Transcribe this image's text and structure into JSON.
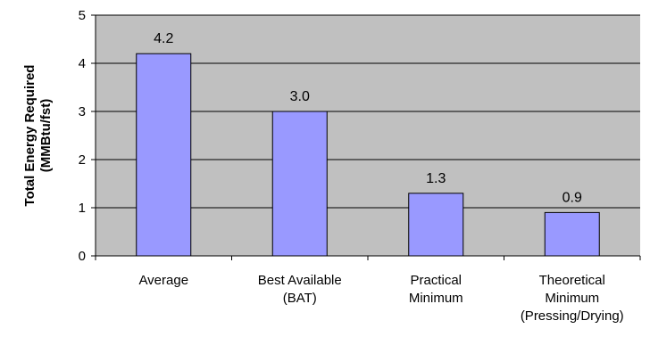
{
  "chart_data": {
    "type": "bar",
    "title": "",
    "xlabel": "",
    "ylabel_lines": [
      "Total Energy Required",
      "(MMBtu/fst)"
    ],
    "ylim": [
      0,
      5
    ],
    "yticks": [
      "0",
      "1",
      "2",
      "3",
      "4",
      "5"
    ],
    "categories": [
      [
        "Average"
      ],
      [
        "Best Available",
        "(BAT)"
      ],
      [
        "Practical",
        "Minimum"
      ],
      [
        "Theoretical",
        "Minimum",
        "(Pressing/Drying)"
      ]
    ],
    "values": [
      4.2,
      3.0,
      1.3,
      0.9
    ],
    "data_labels": [
      "4.2",
      "3.0",
      "1.3",
      "0.9"
    ],
    "grid": true,
    "legend": "none",
    "colors": {
      "plot_background": "#c0c0c0",
      "bar_fill": "#9999ff",
      "bar_stroke": "#000000",
      "gridline": "#000000"
    }
  }
}
